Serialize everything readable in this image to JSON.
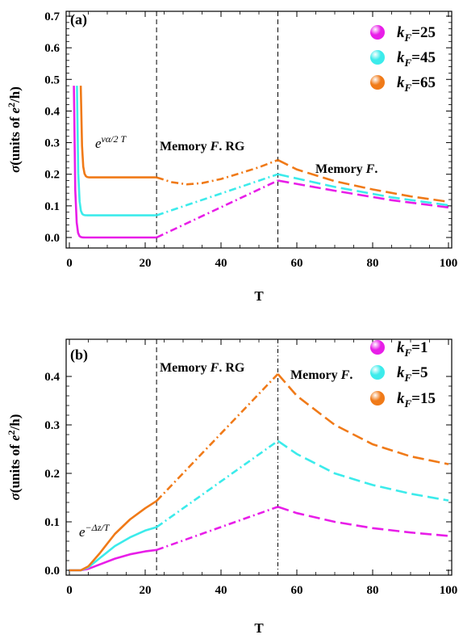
{
  "chart_data": [
    {
      "type": "line",
      "panel_label": "(a)",
      "xlabel": "T",
      "ylabel": "σ(units of e²/h)",
      "xlim": [
        0,
        100
      ],
      "ylim": [
        -0.03,
        0.72
      ],
      "x_ticks": [
        "0",
        "20",
        "40",
        "60",
        "80",
        "100"
      ],
      "y_ticks": [
        "0.0",
        "0.1",
        "0.2",
        "0.3",
        "0.4",
        "0.5",
        "0.6",
        "0.7"
      ],
      "grid": false,
      "legend_position": "top-right",
      "region_boundaries": [
        23,
        55
      ],
      "annotations": [
        {
          "text": "e^{να/2 T}",
          "base": "e",
          "sup": "vα/2 T"
        },
        {
          "text": "Memory F. RG",
          "pre": "Memory ",
          "italic": "F",
          "post": ". RG"
        },
        {
          "text": "Memory F.",
          "pre": "Memory ",
          "italic": "F",
          "post": "."
        }
      ],
      "series": [
        {
          "name": "k_F=25",
          "label_value": "25",
          "color": "#e81ee8",
          "spike_x": 1.2,
          "start": 0.48,
          "plateau": 0.0,
          "rg_points": [
            [
              23,
              0.0
            ],
            [
              55,
              0.18
            ]
          ],
          "memory_points": [
            [
              55,
              0.18
            ],
            [
              70,
              0.148
            ],
            [
              85,
              0.118
            ],
            [
              100,
              0.095
            ]
          ]
        },
        {
          "name": "k_F=45",
          "label_value": "45",
          "color": "#3cebeb",
          "spike_x": 2.0,
          "start": 0.48,
          "plateau": 0.07,
          "rg_points": [
            [
              23,
              0.07
            ],
            [
              55,
              0.2
            ]
          ],
          "memory_points": [
            [
              55,
              0.2
            ],
            [
              70,
              0.16
            ],
            [
              85,
              0.127
            ],
            [
              100,
              0.102
            ]
          ]
        },
        {
          "name": "k_F=65",
          "label_value": "65",
          "color": "#f07a18",
          "spike_x": 3.0,
          "start": 0.48,
          "plateau": 0.19,
          "rg_points": [
            [
              23,
              0.19
            ],
            [
              27,
              0.175
            ],
            [
              31,
              0.168
            ],
            [
              35,
              0.172
            ],
            [
              40,
              0.185
            ],
            [
              45,
              0.203
            ],
            [
              50,
              0.222
            ],
            [
              55,
              0.245
            ]
          ],
          "memory_points": [
            [
              55,
              0.245
            ],
            [
              60,
              0.215
            ],
            [
              70,
              0.178
            ],
            [
              80,
              0.152
            ],
            [
              90,
              0.13
            ],
            [
              100,
              0.113
            ]
          ]
        }
      ]
    },
    {
      "type": "line",
      "panel_label": "(b)",
      "xlabel": "T",
      "ylabel": "σ(units of e²/h)",
      "xlim": [
        0,
        100
      ],
      "ylim": [
        -0.02,
        0.44
      ],
      "x_ticks": [
        "0",
        "20",
        "40",
        "60",
        "80",
        "100"
      ],
      "y_ticks": [
        "0.0",
        "0.1",
        "0.2",
        "0.3",
        "0.4"
      ],
      "grid": false,
      "legend_position": "top-right",
      "region_boundaries": [
        23,
        55
      ],
      "annotations": [
        {
          "text": "e^{-Δz/T}",
          "base": "e",
          "sup": "−Δz/T"
        },
        {
          "text": "Memory F. RG",
          "pre": "Memory ",
          "italic": "F",
          "post": ". RG"
        },
        {
          "text": "Memory F.",
          "pre": "Memory ",
          "italic": "F",
          "post": "."
        }
      ],
      "series": [
        {
          "name": "k_F=1",
          "label_value": "1",
          "color": "#e81ee8",
          "solid_points": [
            [
              0,
              0.0
            ],
            [
              3,
              0.0
            ],
            [
              5,
              0.003
            ],
            [
              8,
              0.012
            ],
            [
              12,
              0.024
            ],
            [
              16,
              0.033
            ],
            [
              20,
              0.039
            ],
            [
              23,
              0.042
            ]
          ],
          "rg_points": [
            [
              23,
              0.042
            ],
            [
              55,
              0.131
            ]
          ],
          "memory_points": [
            [
              55,
              0.131
            ],
            [
              60,
              0.118
            ],
            [
              70,
              0.1
            ],
            [
              80,
              0.087
            ],
            [
              90,
              0.078
            ],
            [
              100,
              0.071
            ]
          ]
        },
        {
          "name": "k_F=5",
          "label_value": "5",
          "color": "#3cebeb",
          "solid_points": [
            [
              0,
              0.0
            ],
            [
              3,
              0.0
            ],
            [
              5,
              0.006
            ],
            [
              8,
              0.025
            ],
            [
              12,
              0.05
            ],
            [
              16,
              0.068
            ],
            [
              20,
              0.082
            ],
            [
              23,
              0.089
            ]
          ],
          "rg_points": [
            [
              23,
              0.089
            ],
            [
              55,
              0.267
            ]
          ],
          "memory_points": [
            [
              55,
              0.267
            ],
            [
              60,
              0.24
            ],
            [
              70,
              0.2
            ],
            [
              80,
              0.176
            ],
            [
              90,
              0.158
            ],
            [
              100,
              0.144
            ]
          ]
        },
        {
          "name": "k_F=15",
          "label_value": "15",
          "color": "#f07a18",
          "solid_points": [
            [
              0,
              0.0
            ],
            [
              3,
              0.0
            ],
            [
              5,
              0.008
            ],
            [
              8,
              0.035
            ],
            [
              12,
              0.075
            ],
            [
              16,
              0.105
            ],
            [
              20,
              0.128
            ],
            [
              23,
              0.143
            ]
          ],
          "rg_points": [
            [
              23,
              0.143
            ],
            [
              55,
              0.405
            ]
          ],
          "memory_points": [
            [
              55,
              0.405
            ],
            [
              60,
              0.36
            ],
            [
              70,
              0.3
            ],
            [
              80,
              0.26
            ],
            [
              90,
              0.235
            ],
            [
              100,
              0.219
            ]
          ]
        }
      ]
    }
  ]
}
